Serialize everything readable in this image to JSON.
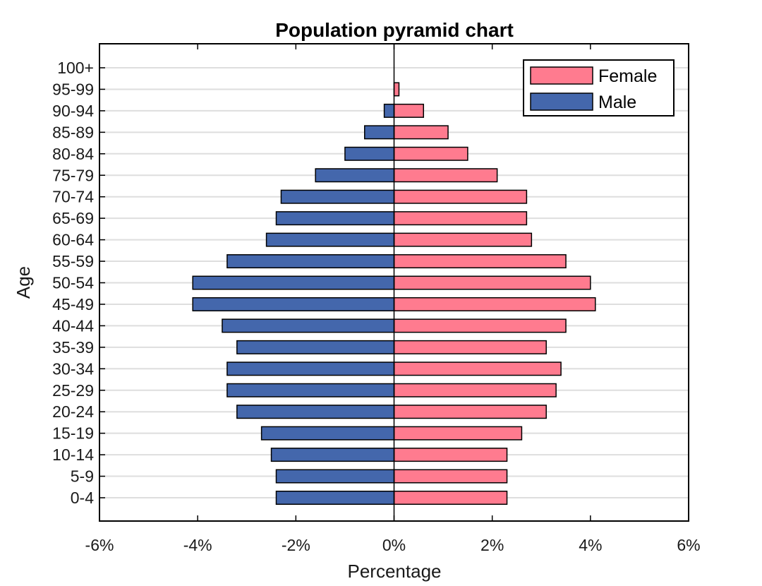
{
  "chart_data": {
    "type": "bar",
    "orientation": "horizontal",
    "title": "Population pyramid chart",
    "xlabel": "Percentage",
    "ylabel": "Age",
    "xlim": [
      -6,
      6
    ],
    "xticks": [
      -6,
      -4,
      -2,
      0,
      2,
      4,
      6
    ],
    "xtick_labels": [
      "-6%",
      "-4%",
      "-2%",
      "0%",
      "2%",
      "4%",
      "6%"
    ],
    "categories": [
      "0-4",
      "5-9",
      "10-14",
      "15-19",
      "20-24",
      "25-29",
      "30-34",
      "35-39",
      "40-44",
      "45-49",
      "50-54",
      "55-59",
      "60-64",
      "65-69",
      "70-74",
      "75-79",
      "80-84",
      "85-89",
      "90-94",
      "95-99",
      "100+"
    ],
    "series": [
      {
        "name": "Female",
        "color": "#ff7b8f",
        "values": [
          2.3,
          2.3,
          2.3,
          2.6,
          3.1,
          3.3,
          3.4,
          3.1,
          3.5,
          4.1,
          4.0,
          3.5,
          2.8,
          2.7,
          2.7,
          2.1,
          1.5,
          1.1,
          0.6,
          0.1,
          0.0
        ]
      },
      {
        "name": "Male",
        "color": "#4467ac",
        "values": [
          -2.4,
          -2.4,
          -2.5,
          -2.7,
          -3.2,
          -3.4,
          -3.4,
          -3.2,
          -3.5,
          -4.1,
          -4.1,
          -3.4,
          -2.6,
          -2.4,
          -2.3,
          -1.6,
          -1.0,
          -0.6,
          -0.2,
          0.0,
          0.0
        ]
      }
    ],
    "grid": "horizontal",
    "legend_position": "top-right"
  }
}
